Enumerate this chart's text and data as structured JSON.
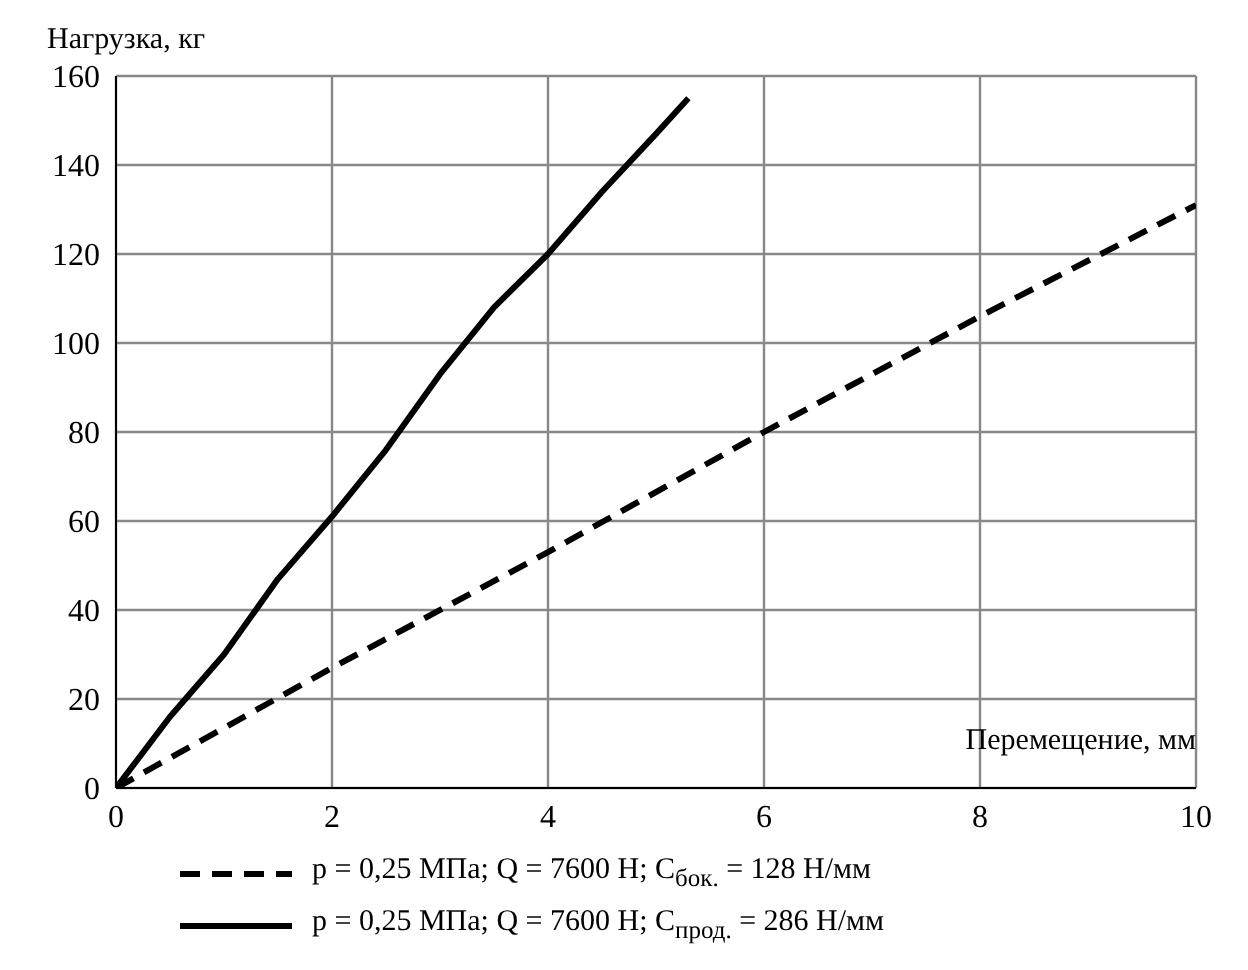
{
  "chart_data": {
    "type": "line",
    "xlabel": "Перемещение, мм",
    "ylabel": "Нагрузка, кг",
    "xlim": [
      0,
      10
    ],
    "xticks": [
      0,
      2,
      4,
      6,
      8,
      10
    ],
    "ylim": [
      0,
      160
    ],
    "yticks": [
      0,
      20,
      40,
      60,
      80,
      100,
      120,
      140,
      160
    ],
    "grid": true,
    "legend": "bottom",
    "marker": "none",
    "series": [
      {
        "name": "p = 0,25 МПа; Q = 7600 Н; C$_{бок.}$ = 128 Н/мм",
        "color": "#000000",
        "line_style": "dashed",
        "x": [
          0,
          2,
          4,
          6,
          8,
          10
        ],
        "values": [
          0,
          27,
          53,
          80,
          106,
          131
        ]
      },
      {
        "name": "p = 0,25 МПа; Q = 7600 Н; C$_{прод.}$ = 286 Н/мм",
        "color": "#000000",
        "line_style": "solid",
        "x": [
          0,
          0.5,
          1,
          1.5,
          2,
          2.5,
          3,
          3.5,
          4,
          4.5,
          5,
          5.3
        ],
        "values": [
          0,
          16,
          30,
          47,
          61,
          76,
          93,
          108,
          120,
          134,
          147,
          155
        ]
      }
    ]
  }
}
